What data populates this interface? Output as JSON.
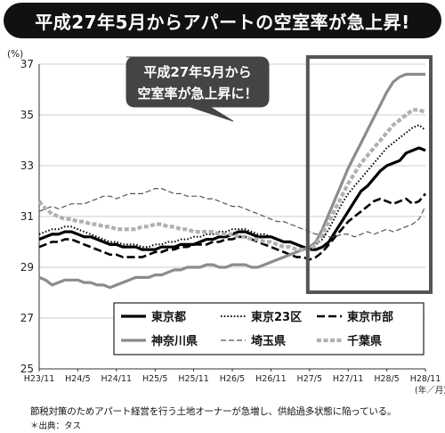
{
  "header": {
    "title": "平成27年5月からアパートの空室率が急上昇!"
  },
  "footer": {
    "note": "節税対策のためアパート経営を行う土地オーナーが急増し、供給過多状態に陥っている。",
    "source": "＊出典：タス"
  },
  "chart_data": {
    "type": "line",
    "title": "",
    "ylabel": "(%)",
    "xlabel": "(年／月)",
    "ylim": [
      25,
      37
    ],
    "yticks": [
      25,
      27,
      29,
      31,
      33,
      35,
      37
    ],
    "x_ticks": [
      "H23/11",
      "H24/5",
      "H24/11",
      "H25/5",
      "H25/11",
      "H26/5",
      "H26/11",
      "H27/5",
      "H27/11",
      "H28/5",
      "H28/11"
    ],
    "x_tick_index": [
      0,
      6,
      12,
      18,
      24,
      30,
      36,
      42,
      48,
      54,
      60
    ],
    "callout": {
      "text_line1": "平成27年5月から",
      "text_line2": "空室率が急上昇に！"
    },
    "highlight_range_index": [
      42,
      61
    ],
    "grid": true,
    "legend_position": "bottom",
    "series": [
      {
        "name": "東京都",
        "style": "solid-bold",
        "color": "#000000",
        "values": [
          30.1,
          30.2,
          30.3,
          30.3,
          30.4,
          30.4,
          30.3,
          30.2,
          30.2,
          30.1,
          30.0,
          29.9,
          29.9,
          29.8,
          29.8,
          29.8,
          29.7,
          29.7,
          29.7,
          29.8,
          29.8,
          29.8,
          29.9,
          29.9,
          29.9,
          30.0,
          30.1,
          30.1,
          30.2,
          30.2,
          30.3,
          30.4,
          30.4,
          30.3,
          30.2,
          30.2,
          30.2,
          30.1,
          30.0,
          30.0,
          29.9,
          29.8,
          29.7,
          29.7,
          29.8,
          30.0,
          30.4,
          30.8,
          31.2,
          31.6,
          32.0,
          32.2,
          32.5,
          32.8,
          33.0,
          33.1,
          33.2,
          33.5,
          33.6,
          33.7,
          33.6
        ]
      },
      {
        "name": "東京23区",
        "style": "dotted",
        "color": "#000000",
        "values": [
          30.3,
          30.4,
          30.5,
          30.5,
          30.6,
          30.6,
          30.5,
          30.4,
          30.3,
          30.2,
          30.1,
          30.0,
          30.0,
          29.9,
          29.9,
          29.9,
          29.8,
          29.8,
          29.9,
          29.9,
          30.0,
          30.0,
          30.1,
          30.1,
          30.2,
          30.2,
          30.3,
          30.3,
          30.4,
          30.4,
          30.5,
          30.5,
          30.5,
          30.4,
          30.3,
          30.3,
          30.2,
          30.1,
          30.0,
          30.0,
          29.9,
          29.8,
          29.8,
          29.9,
          30.1,
          30.5,
          31.0,
          31.5,
          31.9,
          32.2,
          32.5,
          32.8,
          33.1,
          33.4,
          33.7,
          33.9,
          34.1,
          34.3,
          34.5,
          34.6,
          34.4
        ]
      },
      {
        "name": "東京市部",
        "style": "dashed-bold",
        "color": "#000000",
        "values": [
          29.8,
          29.9,
          30.0,
          30.0,
          30.1,
          30.1,
          30.0,
          29.9,
          29.8,
          29.7,
          29.6,
          29.5,
          29.5,
          29.4,
          29.4,
          29.4,
          29.4,
          29.5,
          29.6,
          29.6,
          29.7,
          29.7,
          29.8,
          29.8,
          29.9,
          29.9,
          29.9,
          30.0,
          30.0,
          30.1,
          30.1,
          30.2,
          30.2,
          30.1,
          30.0,
          29.9,
          29.8,
          29.7,
          29.6,
          29.5,
          29.4,
          29.4,
          29.3,
          29.4,
          29.6,
          29.9,
          30.2,
          30.5,
          30.8,
          31.0,
          31.2,
          31.4,
          31.6,
          31.7,
          31.6,
          31.5,
          31.6,
          31.7,
          31.5,
          31.6,
          31.9
        ]
      },
      {
        "name": "神奈川県",
        "style": "solid-gray",
        "color": "#8c8c8c",
        "values": [
          28.6,
          28.5,
          28.3,
          28.4,
          28.5,
          28.5,
          28.5,
          28.4,
          28.4,
          28.3,
          28.3,
          28.2,
          28.3,
          28.4,
          28.5,
          28.6,
          28.6,
          28.6,
          28.7,
          28.7,
          28.8,
          28.9,
          28.9,
          29.0,
          29.0,
          29.0,
          29.1,
          29.1,
          29.0,
          29.0,
          29.1,
          29.1,
          29.1,
          29.0,
          29.0,
          29.1,
          29.2,
          29.3,
          29.4,
          29.5,
          29.6,
          29.7,
          29.8,
          30.0,
          30.5,
          31.1,
          31.7,
          32.3,
          32.9,
          33.4,
          33.9,
          34.4,
          34.9,
          35.4,
          35.9,
          36.3,
          36.5,
          36.6,
          36.6,
          36.6,
          36.6
        ]
      },
      {
        "name": "埼玉県",
        "style": "dashed-thin",
        "color": "#555555",
        "values": [
          31.2,
          31.3,
          31.4,
          31.3,
          31.4,
          31.5,
          31.5,
          31.5,
          31.6,
          31.7,
          31.8,
          31.8,
          31.7,
          31.8,
          31.9,
          31.9,
          31.9,
          32.0,
          32.1,
          32.1,
          32.0,
          31.9,
          31.9,
          31.8,
          31.8,
          31.8,
          31.7,
          31.7,
          31.6,
          31.5,
          31.4,
          31.4,
          31.3,
          31.2,
          31.1,
          31.0,
          30.9,
          30.8,
          30.8,
          30.7,
          30.6,
          30.5,
          30.4,
          30.3,
          30.3,
          30.2,
          30.2,
          30.3,
          30.3,
          30.2,
          30.3,
          30.4,
          30.3,
          30.4,
          30.5,
          30.4,
          30.5,
          30.6,
          30.7,
          30.9,
          31.4
        ]
      },
      {
        "name": "千葉県",
        "style": "dashed-gray-bold",
        "color": "#b0b0b0",
        "values": [
          31.6,
          31.3,
          31.1,
          31.0,
          30.9,
          30.9,
          30.8,
          30.8,
          30.7,
          30.7,
          30.6,
          30.6,
          30.5,
          30.5,
          30.5,
          30.5,
          30.6,
          30.6,
          30.7,
          30.7,
          30.6,
          30.6,
          30.5,
          30.5,
          30.4,
          30.4,
          30.4,
          30.4,
          30.3,
          30.3,
          30.3,
          30.2,
          30.2,
          30.1,
          30.1,
          30.0,
          30.0,
          29.9,
          29.8,
          29.8,
          29.7,
          29.7,
          29.7,
          29.9,
          30.3,
          30.8,
          31.3,
          31.8,
          32.3,
          32.7,
          33.1,
          33.4,
          33.7,
          34.0,
          34.3,
          34.6,
          34.8,
          35.0,
          35.2,
          35.2,
          35.1
        ]
      }
    ]
  }
}
